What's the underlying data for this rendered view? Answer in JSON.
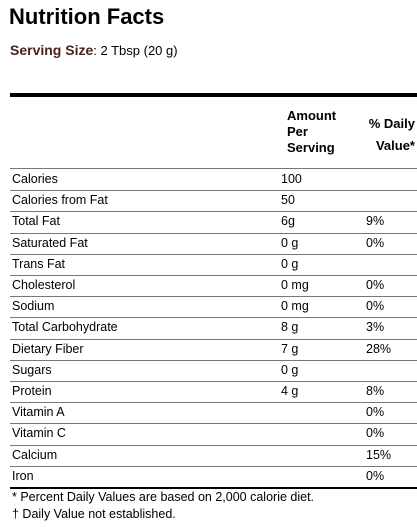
{
  "title": "Nutrition Facts",
  "serving_size": {
    "label": "Serving Size",
    "value": ": 2 Tbsp (20 g)"
  },
  "table": {
    "header": {
      "amount": "Amount Per Serving",
      "daily_value": "% Daily Value*"
    },
    "rows": [
      {
        "name": "Calories",
        "amount": "100"
      },
      {
        "name": "Calories from Fat",
        "amount": "50"
      },
      {
        "name": "Total Fat",
        "amount": "6g",
        "daily_value": "9%"
      },
      {
        "name": "Saturated Fat",
        "amount": "0 g",
        "daily_value": "0%"
      },
      {
        "name": "Trans Fat",
        "amount": "0 g"
      },
      {
        "name": "Cholesterol",
        "amount": "0 mg",
        "daily_value": "0%"
      },
      {
        "name": "Sodium",
        "amount": "0 mg",
        "daily_value": "0%"
      },
      {
        "name": "Total Carbohydrate",
        "amount": "8 g",
        "daily_value": "3%"
      },
      {
        "name": "Dietary Fiber",
        "amount": "7 g",
        "daily_value": "28%"
      },
      {
        "name": "Sugars",
        "amount": "0 g"
      },
      {
        "name": "Protein",
        "amount": "4 g",
        "daily_value": "8%"
      },
      {
        "name": "Vitamin A",
        "daily_value": "0%"
      },
      {
        "name": "Vitamin C",
        "daily_value": "0%"
      },
      {
        "name": "Calcium",
        "daily_value": "15%"
      },
      {
        "name": "Iron",
        "daily_value": "0%"
      }
    ]
  },
  "footnotes": [
    "* Percent Daily Values are based on 2,000 calorie diet.",
    "† Daily Value not established."
  ]
}
